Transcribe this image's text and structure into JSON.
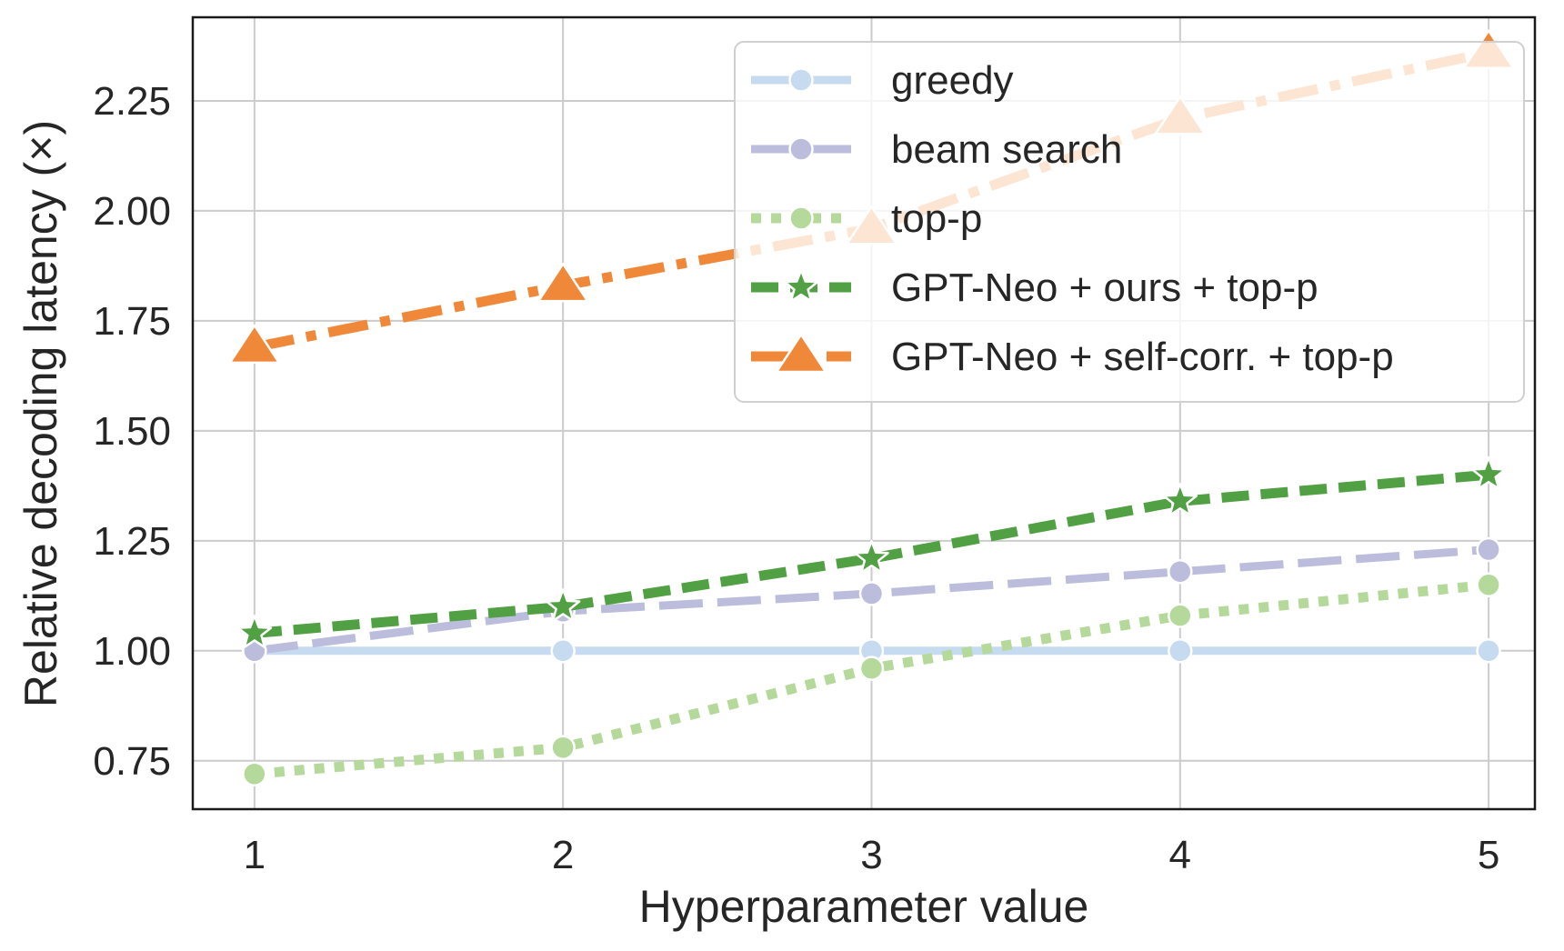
{
  "chart_data": {
    "type": "line",
    "title": "",
    "xlabel": "Hyperparameter value",
    "ylabel": "Relative decoding latency (×)",
    "x": [
      1,
      2,
      3,
      4,
      5
    ],
    "xlim": [
      0.8,
      5.15
    ],
    "ylim": [
      0.64,
      2.44
    ],
    "xticks": [
      1,
      2,
      3,
      4,
      5
    ],
    "yticks": [
      0.75,
      1.0,
      1.25,
      1.5,
      1.75,
      2.0,
      2.25
    ],
    "xtick_labels": [
      "1",
      "2",
      "3",
      "4",
      "5"
    ],
    "ytick_labels": [
      "0.75",
      "1.00",
      "1.25",
      "1.50",
      "1.75",
      "2.00",
      "2.25"
    ],
    "grid": true,
    "legend_position": "top-right",
    "series": [
      {
        "name": "greedy",
        "values": [
          1.0,
          1.0,
          1.0,
          1.0,
          1.0
        ],
        "color": "#c6dbef",
        "line_style": "solid",
        "marker": "circle"
      },
      {
        "name": "beam search",
        "values": [
          1.0,
          1.09,
          1.13,
          1.18,
          1.23
        ],
        "color": "#bcbddc",
        "line_style": "dashed",
        "marker": "circle"
      },
      {
        "name": "top-p",
        "values": [
          0.72,
          0.78,
          0.96,
          1.08,
          1.15
        ],
        "color": "#b4d99a",
        "line_style": "dotted",
        "marker": "circle"
      },
      {
        "name": "GPT-Neo + ours + top-p",
        "values": [
          1.04,
          1.1,
          1.21,
          1.34,
          1.4
        ],
        "color": "#52a044",
        "line_style": "dashed-bold",
        "marker": "star"
      },
      {
        "name": "GPT-Neo + self-corr. + top-p",
        "values": [
          1.69,
          1.83,
          1.96,
          2.21,
          2.36
        ],
        "color": "#f0883a",
        "line_style": "dash-dot",
        "marker": "triangle"
      }
    ]
  }
}
